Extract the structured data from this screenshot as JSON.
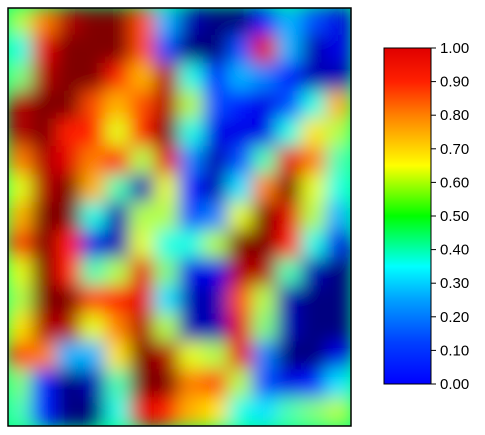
{
  "chart_data": {
    "type": "heatmap",
    "title": "",
    "xlabel": "",
    "ylabel": "",
    "colormap": "jet",
    "value_range": [
      0.0,
      1.0
    ],
    "grid": false,
    "legend": "colorbar-right",
    "colorbar": {
      "ticks": [
        {
          "value": 1.0,
          "label": "1.00"
        },
        {
          "value": 0.9,
          "label": "0.90"
        },
        {
          "value": 0.8,
          "label": "0.80"
        },
        {
          "value": 0.7,
          "label": "0.70"
        },
        {
          "value": 0.6,
          "label": "0.60"
        },
        {
          "value": 0.5,
          "label": "0.50"
        },
        {
          "value": 0.4,
          "label": "0.40"
        },
        {
          "value": 0.3,
          "label": "0.30"
        },
        {
          "value": 0.2,
          "label": "0.20"
        },
        {
          "value": 0.1,
          "label": "0.10"
        },
        {
          "value": 0.0,
          "label": "0.00"
        }
      ]
    },
    "grid_values": [
      [
        0.55,
        0.75,
        0.95,
        1.0,
        1.0,
        0.8,
        0.3,
        0.05,
        0.0,
        0.0,
        0.15,
        0.3,
        0.2,
        0.1
      ],
      [
        0.4,
        0.9,
        1.0,
        1.0,
        1.0,
        0.8,
        0.2,
        0.0,
        0.0,
        0.2,
        0.9,
        0.3,
        0.05,
        0.1
      ],
      [
        0.5,
        0.95,
        1.0,
        1.0,
        0.85,
        0.7,
        0.95,
        0.4,
        0.15,
        0.3,
        0.25,
        0.15,
        0.05,
        0.05
      ],
      [
        0.95,
        1.0,
        1.0,
        0.8,
        0.7,
        0.8,
        0.95,
        0.55,
        0.2,
        0.15,
        0.1,
        0.2,
        0.4,
        0.7
      ],
      [
        0.95,
        1.0,
        0.85,
        0.85,
        0.6,
        0.85,
        1.0,
        0.4,
        0.1,
        0.1,
        0.1,
        0.4,
        0.65,
        0.55
      ],
      [
        0.75,
        0.95,
        0.9,
        0.75,
        0.85,
        0.55,
        0.9,
        0.25,
        0.05,
        0.2,
        0.45,
        0.9,
        0.75,
        0.45
      ],
      [
        0.6,
        0.95,
        1.0,
        0.7,
        0.45,
        0.05,
        0.6,
        0.15,
        0.05,
        0.35,
        0.75,
        1.0,
        0.6,
        0.4
      ],
      [
        0.7,
        1.0,
        1.0,
        0.4,
        0.05,
        0.55,
        0.55,
        0.2,
        0.25,
        0.6,
        1.0,
        0.9,
        0.55,
        0.3
      ],
      [
        0.8,
        1.0,
        0.85,
        0.1,
        0.05,
        0.6,
        0.4,
        0.4,
        0.55,
        1.0,
        1.0,
        0.85,
        0.4,
        0.1
      ],
      [
        0.6,
        1.0,
        0.85,
        0.45,
        0.55,
        0.9,
        0.5,
        0.1,
        0.1,
        0.95,
        0.95,
        0.45,
        0.05,
        0.0
      ],
      [
        0.55,
        1.0,
        1.0,
        0.8,
        0.85,
        0.9,
        0.35,
        0.05,
        0.05,
        0.8,
        0.55,
        0.05,
        0.0,
        0.0
      ],
      [
        0.65,
        0.95,
        0.95,
        0.6,
        0.75,
        0.95,
        0.55,
        0.05,
        0.05,
        0.9,
        0.5,
        0.05,
        0.0,
        0.0
      ],
      [
        0.8,
        0.75,
        0.3,
        0.3,
        0.65,
        1.0,
        0.95,
        0.6,
        0.55,
        0.9,
        0.25,
        0.0,
        0.0,
        0.1
      ],
      [
        0.5,
        0.15,
        0.0,
        0.05,
        0.45,
        1.0,
        1.0,
        0.75,
        0.8,
        0.55,
        0.2,
        0.1,
        0.15,
        0.35
      ],
      [
        0.45,
        0.15,
        0.0,
        0.0,
        0.4,
        0.9,
        0.85,
        0.7,
        0.65,
        0.4,
        0.35,
        0.45,
        0.5,
        0.55
      ]
    ]
  }
}
